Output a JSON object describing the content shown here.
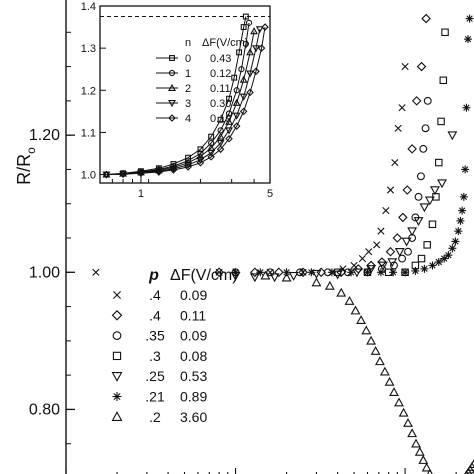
{
  "chart_data": [
    {
      "type": "scatter",
      "title": "",
      "xlabel": "",
      "ylabel": "R/R",
      "ylabel_subscript": "o",
      "xscale": "log",
      "xlim": [
        0.1,
        30
      ],
      "ylim": [
        0.7,
        1.4
      ],
      "y_ticks": [
        {
          "value": 0.8,
          "label": "0.80"
        },
        {
          "value": 1.0,
          "label": "1.00"
        },
        {
          "value": 1.2,
          "label": "1.20"
        }
      ],
      "legend": {
        "placement": "lower-left",
        "header": {
          "p": "p",
          "dF": "ΔF(V/cm)"
        },
        "entries": [
          {
            "marker": "x",
            "p": ".4",
            "dF": "0.09"
          },
          {
            "marker": "diamond",
            "p": ".4",
            "dF": "0.11"
          },
          {
            "marker": "circle",
            "p": ".35",
            "dF": "0.09"
          },
          {
            "marker": "square",
            "p": ".3",
            "dF": "0.08"
          },
          {
            "marker": "triangle-down",
            "p": ".25",
            "dF": "0.53"
          },
          {
            "marker": "star",
            "p": ".21",
            "dF": "0.89"
          },
          {
            "marker": "triangle-up",
            "p": ".2",
            "dF": "3.60"
          }
        ]
      },
      "series": [
        {
          "marker": "x",
          "x": [
            0.15,
            0.8,
            1.6,
            2.5,
            4.3,
            5.0,
            5.6,
            6.1,
            6.8,
            7.2,
            7.7,
            8.2,
            8.7,
            9.1,
            9.6,
            10.0
          ],
          "y": [
            1.0,
            1.0,
            1.0,
            1.0,
            1.005,
            1.01,
            1.02,
            1.03,
            1.04,
            1.06,
            1.09,
            1.12,
            1.16,
            1.21,
            1.24,
            1.3
          ]
        },
        {
          "marker": "diamond",
          "x": [
            0.8,
            1.3,
            1.8,
            2.5,
            3.2,
            4.2,
            5.3,
            6.3,
            7.3,
            8.2,
            9.0,
            9.7,
            10.3,
            11.0,
            11.7,
            12.5,
            13.3
          ],
          "y": [
            1.0,
            1.0,
            1.0,
            1.0,
            1.0,
            1.0,
            1.005,
            1.01,
            1.015,
            1.03,
            1.05,
            1.08,
            1.12,
            1.18,
            1.25,
            1.3,
            1.37
          ]
        },
        {
          "marker": "circle",
          "x": [
            1.0,
            1.6,
            2.4,
            3.5,
            4.6,
            6.0,
            7.3,
            8.6,
            9.6,
            10.4,
            11.0,
            11.5,
            12.0,
            12.4,
            12.8,
            13.2,
            13.6
          ],
          "y": [
            1.0,
            1.0,
            1.0,
            1.0,
            1.0,
            1.0,
            1.005,
            1.01,
            1.02,
            1.03,
            1.05,
            1.08,
            1.11,
            1.14,
            1.18,
            1.21,
            1.25
          ]
        },
        {
          "marker": "square",
          "x": [
            4.0,
            6.0,
            8.0,
            10.0,
            11.5,
            12.5,
            13.5,
            14.5,
            15.2,
            15.8,
            16.3,
            16.8,
            17.2
          ],
          "y": [
            1.0,
            1.0,
            1.0,
            1.0,
            1.01,
            1.02,
            1.04,
            1.07,
            1.11,
            1.16,
            1.22,
            1.28,
            1.35
          ]
        },
        {
          "marker": "triangle-down",
          "x": [
            1.0,
            1.3,
            1.7,
            2.2,
            3.0,
            4.0,
            5.2,
            6.3,
            7.4,
            8.4,
            9.3,
            10.2,
            11.0,
            12.0,
            13.0,
            14.0,
            15.0,
            16.5,
            19.0
          ],
          "y": [
            0.995,
            0.993,
            0.993,
            0.995,
            0.998,
            0.997,
            1.0,
            1.005,
            1.01,
            1.015,
            1.03,
            1.045,
            1.06,
            1.075,
            1.095,
            1.105,
            1.12,
            1.13,
            1.2
          ]
        },
        {
          "marker": "star",
          "x": [
            1.0,
            1.4,
            2.0,
            2.8,
            3.7,
            4.8,
            6.0,
            7.2,
            8.5,
            10.0,
            11.5,
            13.0,
            14.5,
            15.8,
            17.0,
            18.0,
            19.0,
            19.8,
            20.6,
            21.2,
            21.7,
            22.2,
            22.6,
            23.0,
            23.5,
            24.0
          ],
          "y": [
            1.0,
            1.0,
            1.0,
            1.0,
            1.0,
            1.0,
            1.0,
            1.0,
            1.0,
            1.0,
            1.002,
            1.005,
            1.01,
            1.015,
            1.02,
            1.025,
            1.035,
            1.045,
            1.06,
            1.075,
            1.09,
            1.11,
            1.15,
            1.24,
            1.34,
            1.37
          ]
        },
        {
          "marker": "triangle-up",
          "x": [
            1.5,
            2.0,
            3.0,
            3.6,
            4.2,
            4.7,
            5.1,
            5.5,
            5.9,
            6.3,
            6.7,
            7.1,
            7.6,
            8.1,
            8.6,
            9.2,
            9.8,
            10.4,
            11.0,
            11.6,
            12.2,
            12.8,
            13.4,
            14.0,
            14.6,
            15.2,
            15.8,
            16.4,
            17.0,
            17.6,
            18.2,
            18.8,
            19.4,
            20.0,
            20.6,
            21.2,
            21.8,
            22.4,
            23.0,
            23.6,
            24.2,
            24.8,
            25.4
          ],
          "y": [
            0.995,
            0.992,
            0.985,
            0.98,
            0.97,
            0.958,
            0.944,
            0.93,
            0.915,
            0.9,
            0.885,
            0.87,
            0.855,
            0.84,
            0.825,
            0.81,
            0.795,
            0.78,
            0.765,
            0.75,
            0.738,
            0.726,
            0.715,
            0.706,
            0.698,
            0.692,
            0.688,
            0.686,
            0.684,
            0.683,
            0.683,
            0.684,
            0.685,
            0.686,
            0.688,
            0.69,
            0.695,
            0.7,
            0.704,
            0.708,
            0.712,
            0.716,
            0.72
          ]
        }
      ]
    },
    {
      "type": "line",
      "title": "",
      "xlabel": "",
      "ylabel": "",
      "xscale": "log",
      "xlim": [
        0.6,
        5
      ],
      "ylim": [
        0.98,
        1.4
      ],
      "x_ticks": [
        {
          "value": 1,
          "label": "1"
        },
        {
          "value": 5,
          "label": "5"
        }
      ],
      "y_ticks": [
        {
          "value": 1.0,
          "label": "1.0"
        },
        {
          "value": 1.1,
          "label": "1.1"
        },
        {
          "value": 1.2,
          "label": "1.2"
        },
        {
          "value": 1.3,
          "label": "1.3"
        },
        {
          "value": 1.4,
          "label": "1.4"
        }
      ],
      "reference_line": {
        "y": 1.375,
        "style": "dashed"
      },
      "legend": {
        "placement": "center-right",
        "header": {
          "n": "n",
          "dF": "ΔF(V/cm)"
        },
        "entries": [
          {
            "marker": "square",
            "n": "0",
            "dF": "0.43"
          },
          {
            "marker": "circle",
            "n": "1",
            "dF": "0.12"
          },
          {
            "marker": "triangle-up",
            "n": "2",
            "dF": "0.11"
          },
          {
            "marker": "triangle-down",
            "n": "3",
            "dF": "0.30"
          },
          {
            "marker": "diamond",
            "n": "4",
            "dF": "0.19"
          }
        ]
      },
      "series": [
        {
          "marker": "square",
          "x": [
            0.65,
            0.8,
            1.0,
            1.25,
            1.5,
            1.8,
            2.1,
            2.4,
            2.7,
            3.0,
            3.2,
            3.4,
            3.6,
            3.7
          ],
          "y": [
            1.0,
            1.003,
            1.008,
            1.015,
            1.025,
            1.04,
            1.06,
            1.09,
            1.13,
            1.18,
            1.23,
            1.29,
            1.35,
            1.375
          ]
        },
        {
          "marker": "circle",
          "x": [
            0.65,
            0.8,
            1.0,
            1.25,
            1.5,
            1.8,
            2.1,
            2.4,
            2.7,
            3.0,
            3.3,
            3.5,
            3.7,
            3.85
          ],
          "y": [
            1.0,
            1.002,
            1.006,
            1.012,
            1.02,
            1.033,
            1.05,
            1.075,
            1.105,
            1.145,
            1.2,
            1.25,
            1.31,
            1.36
          ]
        },
        {
          "marker": "triangle-up",
          "x": [
            0.65,
            0.8,
            1.0,
            1.25,
            1.5,
            1.8,
            2.1,
            2.4,
            2.7,
            3.0,
            3.3,
            3.6,
            3.9,
            4.1
          ],
          "y": [
            1.0,
            1.002,
            1.005,
            1.01,
            1.017,
            1.028,
            1.043,
            1.063,
            1.09,
            1.125,
            1.17,
            1.225,
            1.29,
            1.34
          ]
        },
        {
          "marker": "triangle-down",
          "x": [
            0.65,
            0.8,
            1.0,
            1.25,
            1.5,
            1.8,
            2.1,
            2.4,
            2.7,
            3.0,
            3.3,
            3.6,
            3.9,
            4.2,
            4.4
          ],
          "y": [
            1.0,
            1.001,
            1.004,
            1.008,
            1.014,
            1.023,
            1.035,
            1.052,
            1.075,
            1.105,
            1.14,
            1.185,
            1.24,
            1.3,
            1.345
          ]
        },
        {
          "marker": "diamond",
          "x": [
            0.65,
            0.8,
            1.0,
            1.25,
            1.5,
            1.8,
            2.1,
            2.4,
            2.7,
            3.0,
            3.3,
            3.6,
            3.9,
            4.2,
            4.5,
            4.7
          ],
          "y": [
            1.0,
            1.001,
            1.003,
            1.006,
            1.011,
            1.018,
            1.028,
            1.042,
            1.06,
            1.085,
            1.115,
            1.15,
            1.195,
            1.245,
            1.3,
            1.35
          ]
        }
      ]
    }
  ]
}
